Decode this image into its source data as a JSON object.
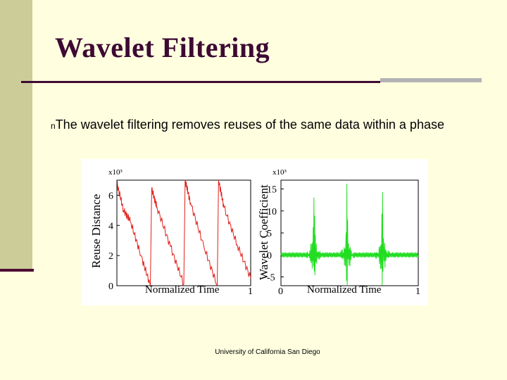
{
  "slide": {
    "title": "Wavelet Filtering",
    "bullet_marker": "n",
    "bullet_text": "The wavelet filtering removes reuses of the same data within a phase",
    "footer": "University of California San Diego"
  },
  "colors": {
    "background": "#ffffe0",
    "accent_bar": "#cccc99",
    "title_color": "#3d0a33",
    "rule_grey": "#b3b3b3",
    "left_series": "#e0201a",
    "right_series": "#22dd22"
  },
  "chart_data": [
    {
      "type": "line",
      "title": "",
      "xlabel": "Normalized Time",
      "ylabel": "Reuse Distance",
      "y_multiplier": "x10³",
      "xlim": [
        0,
        1
      ],
      "ylim": [
        0,
        7
      ],
      "x_tick_labels": [
        "0",
        "1"
      ],
      "y_tick_labels": [
        "0",
        "2",
        "4",
        "6"
      ],
      "color": "#e0201a",
      "series": [
        {
          "x": [
            0,
            0.05,
            0.1,
            0.18,
            0.25,
            0.26,
            0.3,
            0.4,
            0.5,
            0.51,
            0.55,
            0.65,
            0.75,
            0.76,
            0.8,
            0.9,
            1.0
          ],
          "y": [
            6.8,
            5.0,
            4.3,
            2.0,
            0.0,
            6.4,
            5.2,
            2.6,
            0.1,
            7.0,
            5.5,
            2.6,
            0.0,
            7.0,
            5.2,
            2.7,
            0.5
          ]
        }
      ]
    },
    {
      "type": "line",
      "title": "",
      "xlabel": "Normalized Time",
      "ylabel": "Wavelet Coefficient",
      "y_multiplier": "x10³",
      "xlim": [
        0,
        1
      ],
      "ylim": [
        -7,
        17
      ],
      "x_tick_labels": [
        "0",
        "1"
      ],
      "y_tick_labels": [
        "15",
        "10",
        "5",
        "0",
        "-5"
      ],
      "color": "#22dd22",
      "series": [
        {
          "spikes": [
            {
              "x": 0.24,
              "amplitude": 16
            },
            {
              "x": 0.48,
              "amplitude": 13
            },
            {
              "x": 0.74,
              "amplitude": 13
            }
          ],
          "baseline": 0
        }
      ]
    }
  ]
}
